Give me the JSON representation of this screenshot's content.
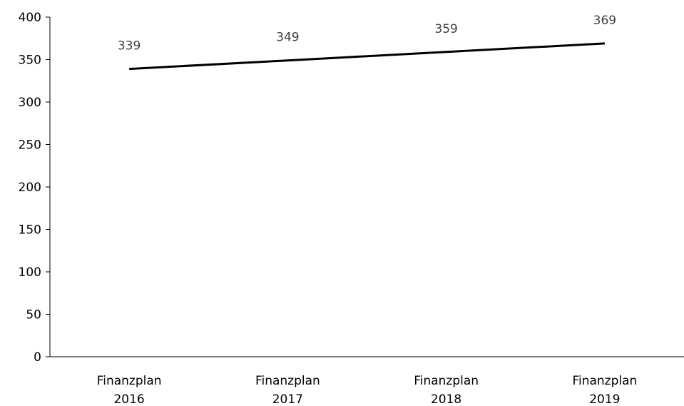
{
  "chart_data": {
    "type": "line",
    "title": "",
    "xlabel": "",
    "ylabel": "",
    "categories": [
      [
        "Finanzplan",
        "2016"
      ],
      [
        "Finanzplan",
        "2017"
      ],
      [
        "Finanzplan",
        "2018"
      ],
      [
        "Finanzplan",
        "2019"
      ]
    ],
    "series": [
      {
        "values": [
          339,
          349,
          359,
          369
        ],
        "color": "#000000"
      }
    ],
    "data_labels": [
      "339",
      "349",
      "359",
      "369"
    ],
    "ylim": [
      0,
      400
    ],
    "yticks": [
      0,
      50,
      100,
      150,
      200,
      250,
      300,
      350,
      400
    ],
    "ytick_labels": [
      "0",
      "50",
      "100",
      "150",
      "200",
      "250",
      "300",
      "350",
      "400"
    ],
    "grid": false,
    "legend": "none"
  }
}
